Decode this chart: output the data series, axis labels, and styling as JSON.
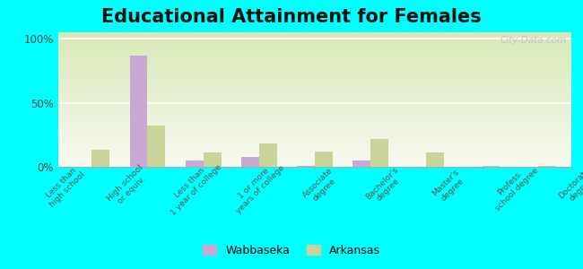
{
  "title": "Educational Attainment for Females",
  "categories": [
    "Less than\nhigh school",
    "High school\nor equiv.",
    "Less than\n1 year of college",
    "1 or more\nyears of college",
    "Associate\ndegree",
    "Bachelor's\ndegree",
    "Master's\ndegree",
    "Profess.\nschool degree",
    "Doctorate\ndegree"
  ],
  "wabbaseka": [
    0,
    87,
    5,
    8,
    1,
    5,
    0,
    0,
    0
  ],
  "arkansas": [
    13,
    32,
    11,
    18,
    12,
    22,
    11,
    1,
    1
  ],
  "wabbaseka_color": "#c9a8d4",
  "arkansas_color": "#c8d49a",
  "background_color": "#00ffff",
  "gradient_top": "#d8e8b8",
  "gradient_bottom": "#f8faf0",
  "yticks": [
    0,
    50,
    100
  ],
  "ylim": [
    0,
    105
  ],
  "watermark": "City-Data.com",
  "title_fontsize": 15,
  "bar_width": 0.32,
  "legend_wabbaseka": "Wabbaseka",
  "legend_arkansas": "Arkansas"
}
